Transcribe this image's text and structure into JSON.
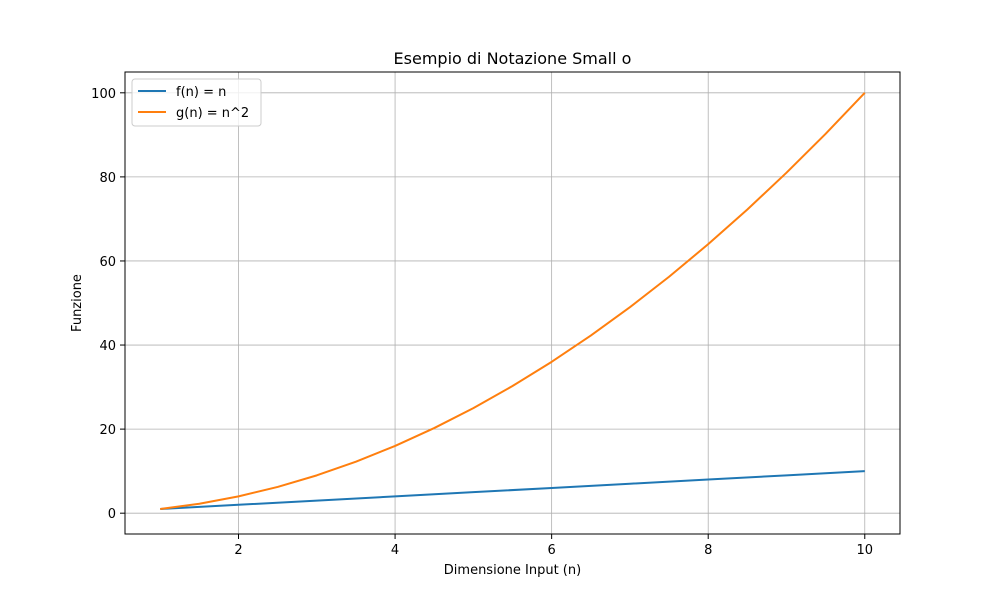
{
  "chart_data": {
    "type": "line",
    "title": "Esempio di Notazione Small o",
    "xlabel": "Dimensione Input (n)",
    "ylabel": "Funzione",
    "xlim": [
      0.55,
      10.45
    ],
    "ylim": [
      -4.95,
      104.95
    ],
    "x_ticks": [
      2,
      4,
      6,
      8,
      10
    ],
    "y_ticks": [
      0,
      20,
      40,
      60,
      80,
      100
    ],
    "grid": true,
    "legend_position": "upper-left",
    "series": [
      {
        "name": "f(n) = n",
        "color": "#1f77b4",
        "x": [
          1,
          2,
          3,
          4,
          5,
          6,
          7,
          8,
          9,
          10
        ],
        "y": [
          1,
          2,
          3,
          4,
          5,
          6,
          7,
          8,
          9,
          10
        ]
      },
      {
        "name": "g(n) = n^2",
        "color": "#ff7f0e",
        "x": [
          1,
          1.5,
          2,
          2.5,
          3,
          3.5,
          4,
          4.5,
          5,
          5.5,
          6,
          6.5,
          7,
          7.5,
          8,
          8.5,
          9,
          9.5,
          10
        ],
        "y": [
          1,
          2.25,
          4,
          6.25,
          9,
          12.25,
          16,
          20.25,
          25,
          30.25,
          36,
          42.25,
          49,
          56.25,
          64,
          72.25,
          81,
          90.25,
          100
        ]
      }
    ]
  }
}
